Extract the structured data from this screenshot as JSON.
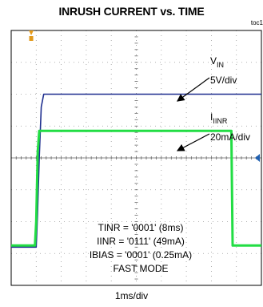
{
  "header": {
    "title": "INRUSH CURRENT vs. TIME",
    "toc_label": "toc1"
  },
  "chart_data": {
    "type": "line",
    "title": "INRUSH CURRENT vs. TIME",
    "xlabel": "1ms/div",
    "ylabel": "",
    "grid": true,
    "x_divisions": 10,
    "y_divisions": 8,
    "x_unit": "ms",
    "xlim": [
      0,
      10
    ],
    "series": [
      {
        "label": "V_IN 5V/div",
        "label_main": "V",
        "label_sub": "IN",
        "scale": "5V/div",
        "color": "#1f2f8f",
        "points": [
          [
            0,
            1.2
          ],
          [
            1.0,
            1.2
          ],
          [
            1.05,
            2.2
          ],
          [
            1.12,
            4.0
          ],
          [
            1.2,
            5.6
          ],
          [
            1.3,
            6.0
          ],
          [
            6.2,
            6.0
          ],
          [
            10,
            6.0
          ]
        ]
      },
      {
        "label": "I_IINR 20mA/div",
        "label_main": "I",
        "label_sub": "IINR",
        "scale": "20mA/div",
        "color": "#22dd44",
        "points": [
          [
            0,
            1.25
          ],
          [
            0.95,
            1.25
          ],
          [
            1.0,
            2.0
          ],
          [
            1.06,
            4.2
          ],
          [
            1.12,
            4.85
          ],
          [
            8.8,
            4.85
          ],
          [
            8.85,
            1.25
          ],
          [
            10,
            1.25
          ]
        ]
      }
    ],
    "annotations": [
      "TINR = '0001' (8ms)",
      "IINR = '0111' (49mA)",
      "IBIAS = '0001' (0.25mA)",
      "FAST MODE"
    ]
  },
  "colors": {
    "grid": "#999999",
    "frame": "#000000",
    "trigger_marker": "#e39a1b",
    "level_marker": "#1f5fb0"
  }
}
